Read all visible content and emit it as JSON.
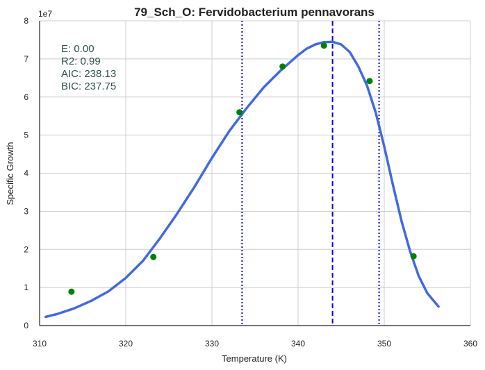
{
  "chart_data": {
    "type": "line",
    "title": "79_Sch_O: Fervidobacterium pennavorans",
    "xlabel": "Temperature (K)",
    "ylabel": "Specific Growth",
    "y_offset_label": "1e7",
    "xlim": [
      310,
      360
    ],
    "ylim": [
      0,
      8
    ],
    "x_ticks": [
      310,
      320,
      330,
      340,
      350,
      360
    ],
    "y_ticks": [
      0,
      1,
      2,
      3,
      4,
      5,
      6,
      7,
      8
    ],
    "grid": true,
    "stats": [
      "E:  0.00",
      "R2:  0.99",
      "AIC: 238.13",
      "BIC: 237.75"
    ],
    "series": [
      {
        "kind": "points",
        "color": "#008000",
        "x": [
          313.7,
          323.2,
          333.2,
          338.2,
          343.0,
          348.3,
          353.4
        ],
        "y": [
          0.89,
          1.8,
          5.6,
          6.8,
          7.35,
          6.42,
          1.82
        ]
      },
      {
        "kind": "fit-line",
        "color": "#4169e1",
        "x": [
          310.7,
          312,
          314,
          316,
          318,
          320,
          322,
          324,
          326,
          328,
          330,
          332,
          334,
          336,
          338,
          340,
          341,
          342,
          343,
          344,
          345,
          346,
          347,
          348,
          349,
          350,
          351,
          352,
          353,
          354,
          355,
          356.3
        ],
        "y": [
          0.23,
          0.3,
          0.45,
          0.65,
          0.9,
          1.25,
          1.7,
          2.3,
          2.95,
          3.65,
          4.4,
          5.1,
          5.7,
          6.25,
          6.7,
          7.1,
          7.27,
          7.38,
          7.44,
          7.45,
          7.38,
          7.18,
          6.8,
          6.3,
          5.6,
          4.7,
          3.7,
          2.75,
          1.95,
          1.3,
          0.85,
          0.5
        ]
      }
    ],
    "vlines": [
      {
        "x": 333.5,
        "style": "dotted",
        "color": "#0000ff"
      },
      {
        "x": 344.0,
        "style": "dashed",
        "color": "#0000ff"
      },
      {
        "x": 349.4,
        "style": "dotted",
        "color": "#0000ff"
      }
    ],
    "colors": {
      "grid": "#cccccc",
      "axis": "#222222"
    }
  }
}
